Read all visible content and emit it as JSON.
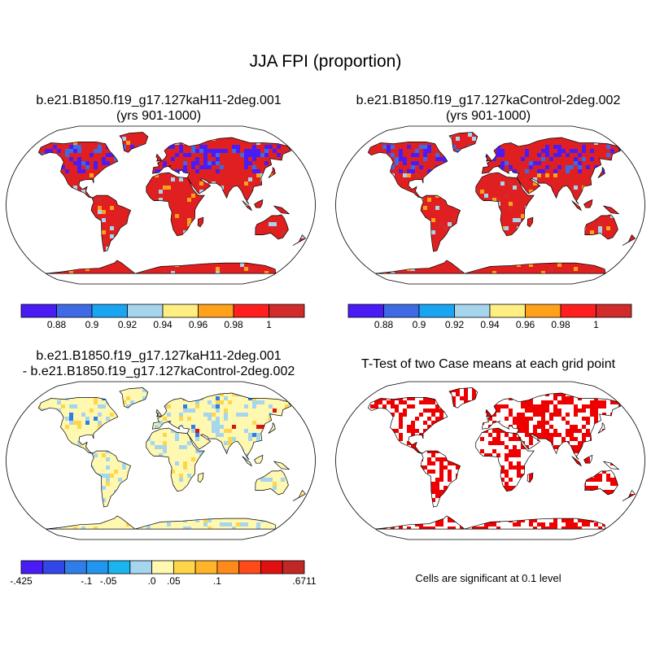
{
  "title": "JJA FPI (proportion)",
  "panels": [
    {
      "title_line1": "b.e21.B1850.f19_g17.127kaH11-2deg.001",
      "title_line2": "(yrs 901-1000)",
      "content": "case mean field",
      "colorbar": {
        "colors": [
          "#4a1cf5",
          "#3f6ae6",
          "#1aa5f2",
          "#a6d5ee",
          "#ffee82",
          "#ffa11a",
          "#ff1f1f",
          "#d22b2b"
        ],
        "labels": [
          "0.88",
          "0.9",
          "0.92",
          "0.94",
          "0.96",
          "0.98",
          "1"
        ]
      }
    },
    {
      "title_line1": "b.e21.B1850.f19_g17.127kaControl-2deg.002",
      "title_line2": "(yrs 901-1000)",
      "content": "case mean field",
      "colorbar": {
        "colors": [
          "#4a1cf5",
          "#3f6ae6",
          "#1aa5f2",
          "#a6d5ee",
          "#ffee82",
          "#ffa11a",
          "#ff1f1f",
          "#d22b2b"
        ],
        "labels": [
          "0.88",
          "0.9",
          "0.92",
          "0.94",
          "0.96",
          "0.98",
          "1"
        ]
      }
    },
    {
      "title_line1": "b.e21.B1850.f19_g17.127kaH11-2deg.001",
      "title_line2": "- b.e21.B1850.f19_g17.127kaControl-2deg.002",
      "content": "difference field",
      "colorbar": {
        "colors": [
          "#4a1cf5",
          "#3347e8",
          "#2f7de8",
          "#2196f0",
          "#1ab4f0",
          "#a6d5ee",
          "#fff8b0",
          "#ffd54a",
          "#ffb42a",
          "#ff8a1a",
          "#ff4a1a",
          "#e01010",
          "#c02828"
        ],
        "labels": [
          "-.425",
          "-.1",
          "-.05",
          ".0",
          ".05",
          ".1",
          ".6711"
        ]
      }
    },
    {
      "title_line1": "T-Test of two Case means at each grid point",
      "title_line2": "",
      "content": "significance mask",
      "note": "Cells are significant at 0.1 level",
      "colors": {
        "significant": "#ee0000"
      }
    }
  ]
}
